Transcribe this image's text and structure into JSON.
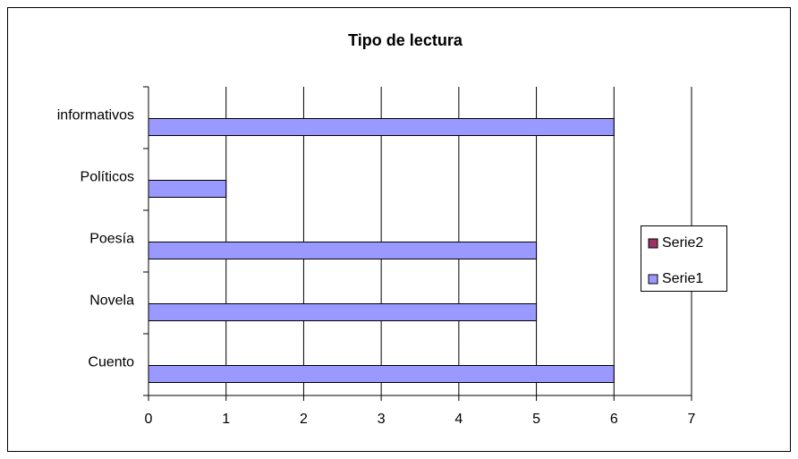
{
  "chart_data": {
    "type": "bar",
    "orientation": "horizontal",
    "title": "Tipo de lectura",
    "categories": [
      "Cuento",
      "Novela",
      "Poesía",
      "Políticos",
      "informativos"
    ],
    "series": [
      {
        "name": "Serie1",
        "color": "#9999ff",
        "values": [
          6,
          5,
          5,
          1,
          6
        ]
      },
      {
        "name": "Serie2",
        "color": "#993366",
        "values": [
          null,
          null,
          null,
          null,
          null
        ]
      }
    ],
    "xlim": [
      0,
      7
    ],
    "xticks": [
      0,
      1,
      2,
      3,
      4,
      5,
      6,
      7
    ],
    "grid": true,
    "legend": "right"
  }
}
